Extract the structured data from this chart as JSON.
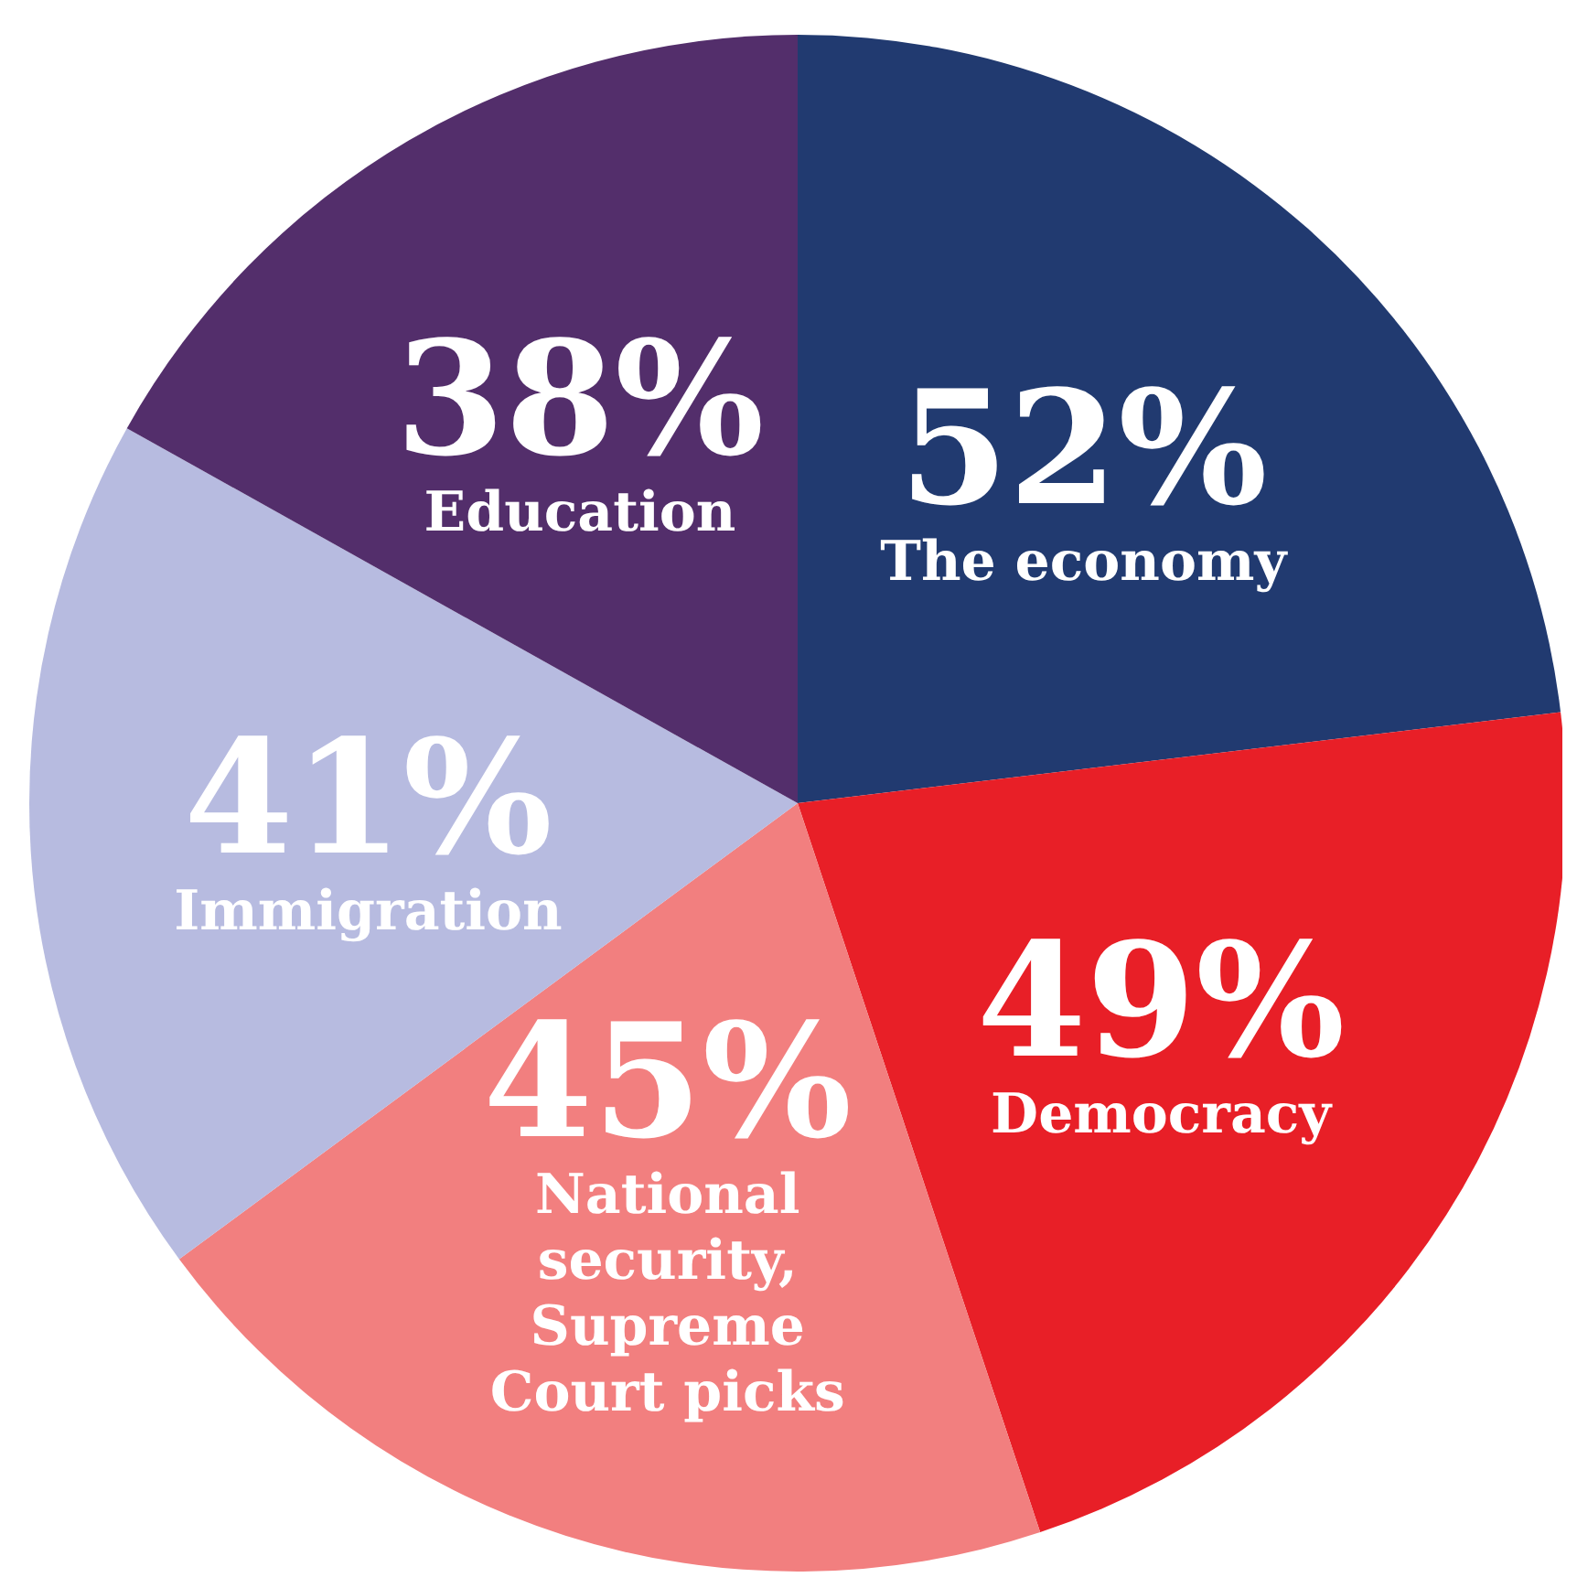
{
  "chart_data": {
    "type": "pie",
    "categories": [
      "The economy",
      "Democracy",
      "National security, Supreme Court picks",
      "Immigration",
      "Education"
    ],
    "values": [
      52,
      49,
      45,
      41,
      38
    ],
    "value_labels": [
      "52%",
      "49%",
      "45%",
      "41%",
      "38%"
    ],
    "colors": [
      "#213a70",
      "#e81f27",
      "#f27f7f",
      "#b7bbe0",
      "#532e6b"
    ],
    "legend": false
  }
}
